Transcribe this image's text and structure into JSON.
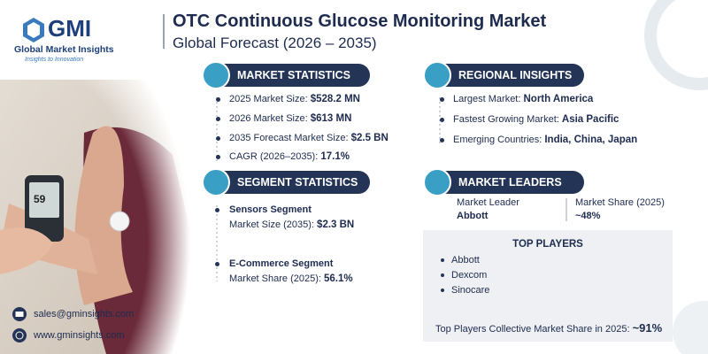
{
  "logo": {
    "name": "GMI",
    "full_name": "Global Market Insights",
    "tagline": "Insights to Innovation"
  },
  "header": {
    "title": "OTC Continuous Glucose Monitoring Market",
    "subtitle": "Global Forecast (2026 – 2035)"
  },
  "device_reading": "59",
  "market_statistics": {
    "title": "MARKET STATISTICS",
    "items": [
      {
        "label": "2025 Market Size:",
        "value": "$528.2 MN"
      },
      {
        "label": "2026 Market Size:",
        "value": "$613 MN"
      },
      {
        "label": "2035 Forecast Market Size:",
        "value": "$2.5 BN"
      },
      {
        "label": "CAGR (2026–2035):",
        "value": "17.1%"
      }
    ]
  },
  "regional_insights": {
    "title": "REGIONAL INSIGHTS",
    "items": [
      {
        "label": "Largest Market:",
        "value": "North America"
      },
      {
        "label": "Fastest Growing Market:",
        "value": "Asia Pacific"
      },
      {
        "label": "Emerging Countries:",
        "value": "India, China, Japan"
      }
    ]
  },
  "segment_statistics": {
    "title": "SEGMENT STATISTICS",
    "items": [
      {
        "name": "Sensors Segment",
        "label": "Market Size (2035):",
        "value": "$2.3 BN"
      },
      {
        "name": "E-Commerce Segment",
        "label": "Market Share (2025):",
        "value": "56.1%"
      }
    ]
  },
  "market_leaders": {
    "title": "MARKET LEADERS",
    "leader_label": "Market Leader",
    "leader": "Abbott",
    "share_label": "Market Share (2025)",
    "share": "~48%"
  },
  "top_players": {
    "title": "TOP PLAYERS",
    "players": [
      "Abbott",
      "Dexcom",
      "Sinocare"
    ],
    "summary_label": "Top Players Collective Market Share in 2025:",
    "summary_value": "~91%"
  },
  "contact": {
    "email": "sales@gminsights.com",
    "website": "www.gminsights.com"
  }
}
